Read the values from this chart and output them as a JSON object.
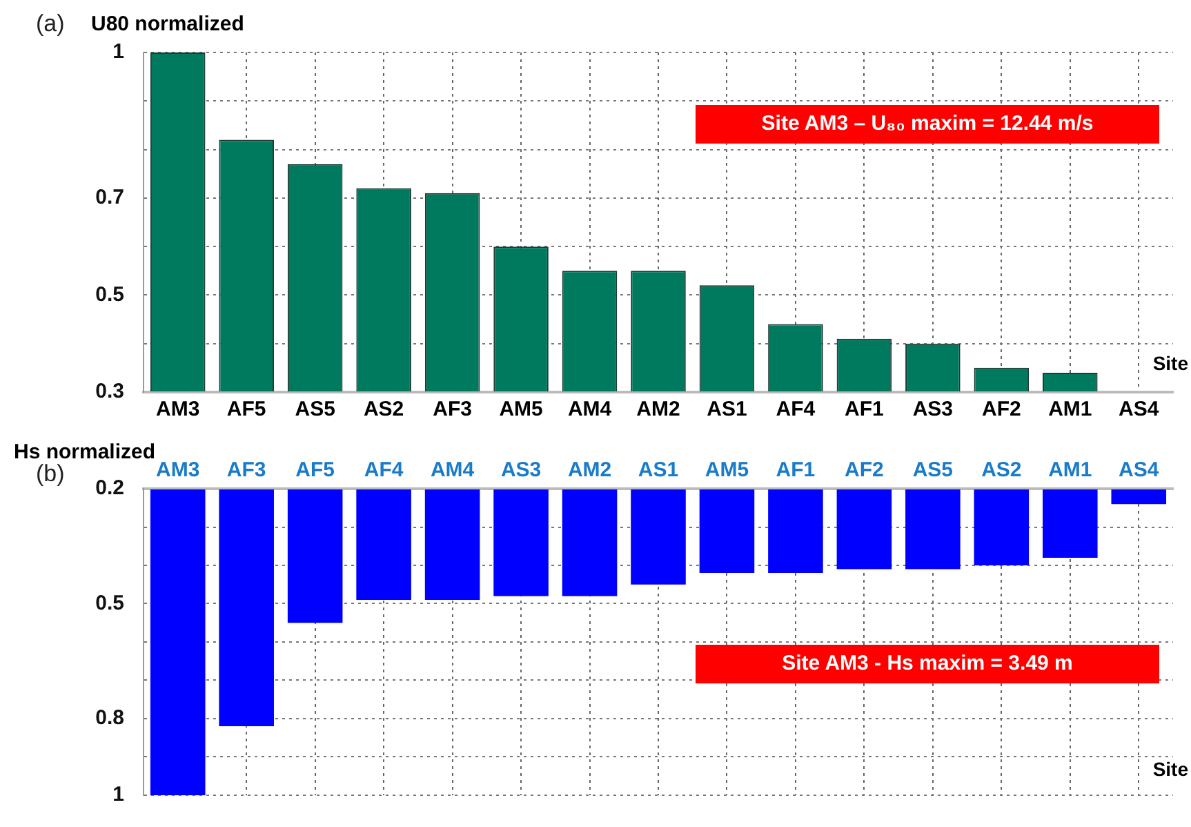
{
  "chart_data": [
    {
      "type": "bar",
      "title": "(a)",
      "ylabel": "U80 normalized",
      "xlabel": "Site",
      "categories": [
        "AM3",
        "AF5",
        "AS5",
        "AS2",
        "AF3",
        "AM5",
        "AM4",
        "AM2",
        "AS1",
        "AF4",
        "AF1",
        "AS3",
        "AF2",
        "AM1",
        "AS4"
      ],
      "values": [
        1,
        0.82,
        0.77,
        0.72,
        0.71,
        0.6,
        0.55,
        0.55,
        0.52,
        0.44,
        0.41,
        0.4,
        0.35,
        0.34,
        0.3
      ],
      "color": "#007a5e",
      "ylim": [
        0.3,
        1
      ],
      "yticks": [
        0.3,
        {
          "value": 0.4,
          "label": null
        },
        0.5,
        {
          "value": 0.6,
          "label": null
        },
        0.7,
        {
          "value": 0.8,
          "label": null
        },
        {
          "value": 0.9,
          "label": null
        },
        1
      ],
      "grid": true,
      "annotations": [
        "Site AM3 – U₈₀ maxim = 12.44 m/s"
      ]
    },
    {
      "type": "bar",
      "title": "(b)",
      "ylabel": "Hs normalized",
      "xlabel": "Site",
      "categories": [
        "AM3",
        "AF3",
        "AF5",
        "AF4",
        "AM4",
        "AS3",
        "AM2",
        "AS1",
        "AM5",
        "AF1",
        "AF2",
        "AS5",
        "AS2",
        "AM1",
        "AS4"
      ],
      "values": [
        1,
        0.82,
        0.55,
        0.49,
        0.49,
        0.48,
        0.48,
        0.45,
        0.42,
        0.42,
        0.41,
        0.41,
        0.4,
        0.38,
        0.24
      ],
      "color": "#0000ff",
      "ylim": [
        1,
        0.2
      ],
      "yticks": [
        0.2,
        {
          "value": 0.3,
          "label": null
        },
        {
          "value": 0.4,
          "label": null
        },
        0.5,
        {
          "value": 0.6,
          "label": null
        },
        {
          "value": 0.7,
          "label": null
        },
        0.8,
        {
          "value": 0.9,
          "label": null
        },
        1
      ],
      "grid": true,
      "annotations": [
        "Site AM3 - Hs  maxim = 3.49 m"
      ]
    }
  ]
}
